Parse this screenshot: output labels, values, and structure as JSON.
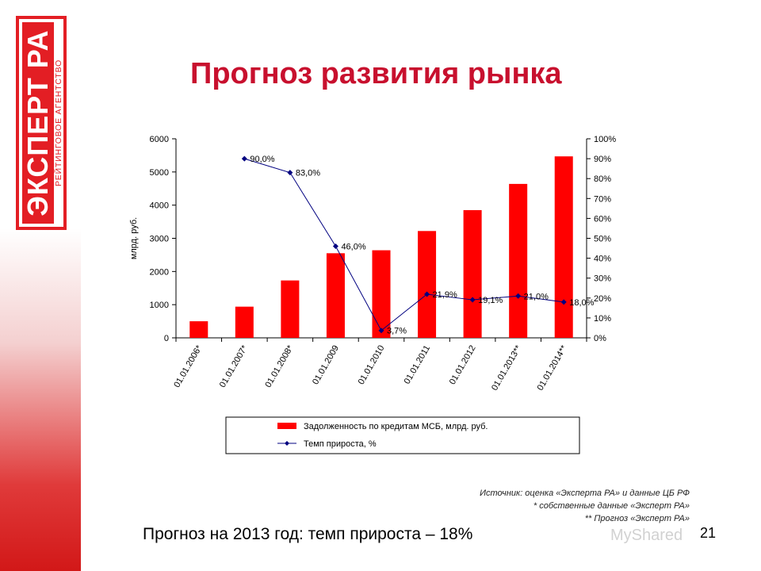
{
  "logo": {
    "main_text": "ЭКСПЕРТ РА",
    "sub_text": "РЕЙТИНГОВОЕ АГЕНТСТВО",
    "color": "#e31e24"
  },
  "page_title": "Прогноз развития рынка",
  "chart_data": {
    "type": "bar",
    "categories": [
      "01.01.2006*",
      "01.01.2007*",
      "01.01.2008*",
      "01.01.2009",
      "01.01.2010",
      "01.01.2011",
      "01.01.2012",
      "01.01.2013**",
      "01.01.2014**"
    ],
    "series": [
      {
        "name": "Задолженность по кредитам МСБ, млрд. руб.",
        "type": "bar",
        "axis": "left",
        "color": "#ff0000",
        "values": [
          500,
          940,
          1730,
          2550,
          2640,
          3220,
          3850,
          4640,
          5470
        ]
      },
      {
        "name": "Темп прироста, %",
        "type": "line",
        "axis": "right",
        "color": "#000080",
        "values": [
          null,
          90.0,
          83.0,
          46.0,
          3.7,
          21.9,
          19.1,
          21.0,
          18.0
        ],
        "labels": [
          "",
          "90,0%",
          "83,0%",
          "46,0%",
          "3,7%",
          "21,9%",
          "19,1%",
          "21,0%",
          "18,0%"
        ]
      }
    ],
    "ylabel": "млрд. руб.",
    "y_left": {
      "min": 0,
      "max": 6000,
      "ticks": [
        "0",
        "1000",
        "2000",
        "3000",
        "4000",
        "5000",
        "6000"
      ]
    },
    "y_right": {
      "min": 0,
      "max": 100,
      "ticks": [
        "0%",
        "10%",
        "20%",
        "30%",
        "40%",
        "50%",
        "60%",
        "70%",
        "80%",
        "90%",
        "100%"
      ]
    },
    "grid": false,
    "legend_position": "bottom"
  },
  "source": {
    "line1": "Источник: оценка «Эксперта РА» и данные ЦБ РФ",
    "line2": "* собственные данные «Эксперт РА»",
    "line3": "** Прогноз «Эксперт РА»"
  },
  "forecast_text": "Прогноз на 2013 год: темп прироста – 18%",
  "page_number": "21",
  "watermark": "MyShared"
}
